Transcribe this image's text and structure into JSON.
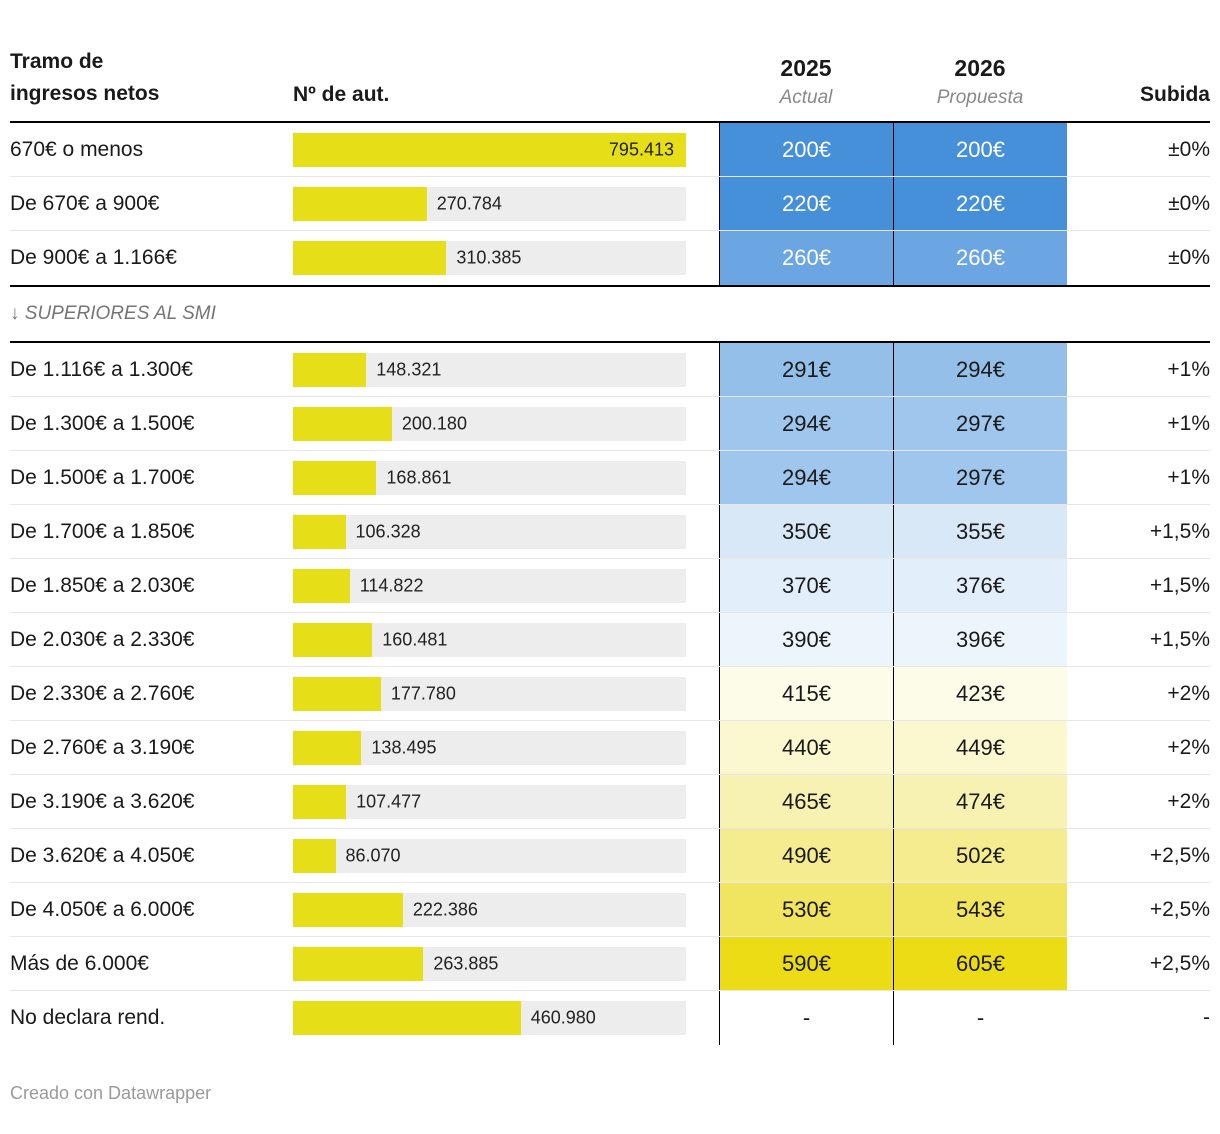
{
  "header": {
    "tramo_line1": "Tramo de",
    "tramo_line2": "ingresos netos",
    "num_aut": "Nº de aut.",
    "y2025": "2025",
    "y2025_sub": "Actual",
    "y2026": "2026",
    "y2026_sub": "Propuesta",
    "subida": "Subida"
  },
  "smi_divider_label": "↓ SUPERIORES AL SMI",
  "footer_text": "Creado con Datawrapper",
  "colors": {
    "bar": "#e6de16",
    "bar_track": "#ededed",
    "rule_black": "#000000"
  },
  "chart_data": {
    "type": "table",
    "columns": [
      "Tramo de ingresos netos",
      "Nº de aut.",
      "2025 Actual",
      "2026 Propuesta",
      "Subida"
    ],
    "bar_max": 795413,
    "groups": [
      {
        "rows": [
          {
            "tramo": "670€ o menos",
            "aut_value": 795413,
            "aut_label": "795.413",
            "label_inside": true,
            "cuota_2025": "200€",
            "cuota_2026": "200€",
            "subida": "±0%",
            "cell_bg": "#468fd9",
            "cell_fg": "#ffffff"
          },
          {
            "tramo": "De 670€ a 900€",
            "aut_value": 270784,
            "aut_label": "270.784",
            "label_inside": false,
            "cuota_2025": "220€",
            "cuota_2026": "220€",
            "subida": "±0%",
            "cell_bg": "#468fd9",
            "cell_fg": "#ffffff"
          },
          {
            "tramo": "De 900€ a 1.166€",
            "aut_value": 310385,
            "aut_label": "310.385",
            "label_inside": false,
            "cuota_2025": "260€",
            "cuota_2026": "260€",
            "subida": "±0%",
            "cell_bg": "#6ba6e2",
            "cell_fg": "#ffffff"
          }
        ]
      },
      {
        "rows": [
          {
            "tramo": "De 1.116€ a 1.300€",
            "aut_value": 148321,
            "aut_label": "148.321",
            "label_inside": false,
            "cuota_2025": "291€",
            "cuota_2026": "294€",
            "subida": "+1%",
            "cell_bg": "#94bfe9",
            "cell_fg": "#1a1a1a"
          },
          {
            "tramo": "De 1.300€ a 1.500€",
            "aut_value": 200180,
            "aut_label": "200.180",
            "label_inside": false,
            "cuota_2025": "294€",
            "cuota_2026": "297€",
            "subida": "+1%",
            "cell_bg": "#9fc6ec",
            "cell_fg": "#1a1a1a"
          },
          {
            "tramo": "De 1.500€ a 1.700€",
            "aut_value": 168861,
            "aut_label": "168.861",
            "label_inside": false,
            "cuota_2025": "294€",
            "cuota_2026": "297€",
            "subida": "+1%",
            "cell_bg": "#9fc6ec",
            "cell_fg": "#1a1a1a"
          },
          {
            "tramo": "De 1.700€ a 1.850€",
            "aut_value": 106328,
            "aut_label": "106.328",
            "label_inside": false,
            "cuota_2025": "350€",
            "cuota_2026": "355€",
            "subida": "+1,5%",
            "cell_bg": "#d8e8f7",
            "cell_fg": "#1a1a1a"
          },
          {
            "tramo": "De 1.850€ a 2.030€",
            "aut_value": 114822,
            "aut_label": "114.822",
            "label_inside": false,
            "cuota_2025": "370€",
            "cuota_2026": "376€",
            "subida": "+1,5%",
            "cell_bg": "#e2eefa",
            "cell_fg": "#1a1a1a"
          },
          {
            "tramo": "De 2.030€ a 2.330€",
            "aut_value": 160481,
            "aut_label": "160.481",
            "label_inside": false,
            "cuota_2025": "390€",
            "cuota_2026": "396€",
            "subida": "+1,5%",
            "cell_bg": "#edf5fc",
            "cell_fg": "#1a1a1a"
          },
          {
            "tramo": "De 2.330€ a 2.760€",
            "aut_value": 177780,
            "aut_label": "177.780",
            "label_inside": false,
            "cuota_2025": "415€",
            "cuota_2026": "423€",
            "subida": "+2%",
            "cell_bg": "#fdfce9",
            "cell_fg": "#1a1a1a"
          },
          {
            "tramo": "De 2.760€ a 3.190€",
            "aut_value": 138495,
            "aut_label": "138.495",
            "label_inside": false,
            "cuota_2025": "440€",
            "cuota_2026": "449€",
            "subida": "+2%",
            "cell_bg": "#fbf7cf",
            "cell_fg": "#1a1a1a"
          },
          {
            "tramo": "De 3.190€ a 3.620€",
            "aut_value": 107477,
            "aut_label": "107.477",
            "label_inside": false,
            "cuota_2025": "465€",
            "cuota_2026": "474€",
            "subida": "+2%",
            "cell_bg": "#f8f2b2",
            "cell_fg": "#1a1a1a"
          },
          {
            "tramo": "De 3.620€ a 4.050€",
            "aut_value": 86070,
            "aut_label": "86.070",
            "label_inside": false,
            "cuota_2025": "490€",
            "cuota_2026": "502€",
            "subida": "+2,5%",
            "cell_bg": "#f5ec90",
            "cell_fg": "#1a1a1a"
          },
          {
            "tramo": "De 4.050€ a 6.000€",
            "aut_value": 222386,
            "aut_label": "222.386",
            "label_inside": false,
            "cuota_2025": "530€",
            "cuota_2026": "543€",
            "subida": "+2,5%",
            "cell_bg": "#f1e45f",
            "cell_fg": "#1a1a1a"
          },
          {
            "tramo": "Más de 6.000€",
            "aut_value": 263885,
            "aut_label": "263.885",
            "label_inside": false,
            "cuota_2025": "590€",
            "cuota_2026": "605€",
            "subida": "+2,5%",
            "cell_bg": "#ebdc16",
            "cell_fg": "#1a1a1a"
          },
          {
            "tramo": "No declara rend.",
            "aut_value": 460980,
            "aut_label": "460.980",
            "label_inside": false,
            "cuota_2025": "-",
            "cuota_2026": "-",
            "subida": "-",
            "cell_bg": "",
            "cell_fg": "#1a1a1a"
          }
        ]
      }
    ]
  }
}
